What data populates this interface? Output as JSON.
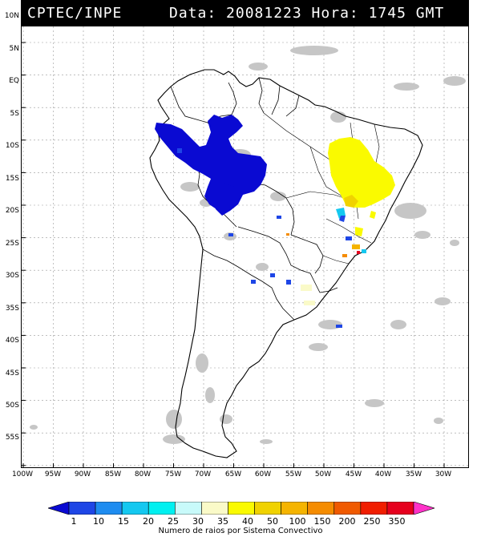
{
  "header": {
    "source": "CPTEC/INPE",
    "datetime": "Data: 20081223 Hora: 1745 GMT"
  },
  "map": {
    "lat_labels": [
      "10N",
      "5N",
      "EQ",
      "5S",
      "10S",
      "15S",
      "20S",
      "25S",
      "30S",
      "35S",
      "40S",
      "45S",
      "50S",
      "55S"
    ],
    "lon_labels": [
      "100W",
      "95W",
      "90W",
      "85W",
      "80W",
      "75W",
      "70W",
      "65W",
      "60W",
      "55W",
      "50W",
      "45W",
      "40W",
      "35W",
      "30W"
    ],
    "region": "South America",
    "lat_range": [
      -56,
      13
    ],
    "lon_range": [
      -100,
      -28
    ]
  },
  "colorbar": {
    "labels": [
      "1",
      "10",
      "15",
      "20",
      "25",
      "30",
      "35",
      "40",
      "50",
      "100",
      "150",
      "200",
      "250",
      "350"
    ],
    "colors": [
      "#0a0ad2",
      "#1e46e6",
      "#1e8cf0",
      "#14c8f0",
      "#00f0f0",
      "#c8fafa",
      "#fafac8",
      "#fafa00",
      "#f0d200",
      "#f5b400",
      "#f58c00",
      "#f05a00",
      "#f01e00",
      "#e6001e",
      "#ff32c8"
    ],
    "title": "Numero de raios por Sistema Convectivo"
  }
}
